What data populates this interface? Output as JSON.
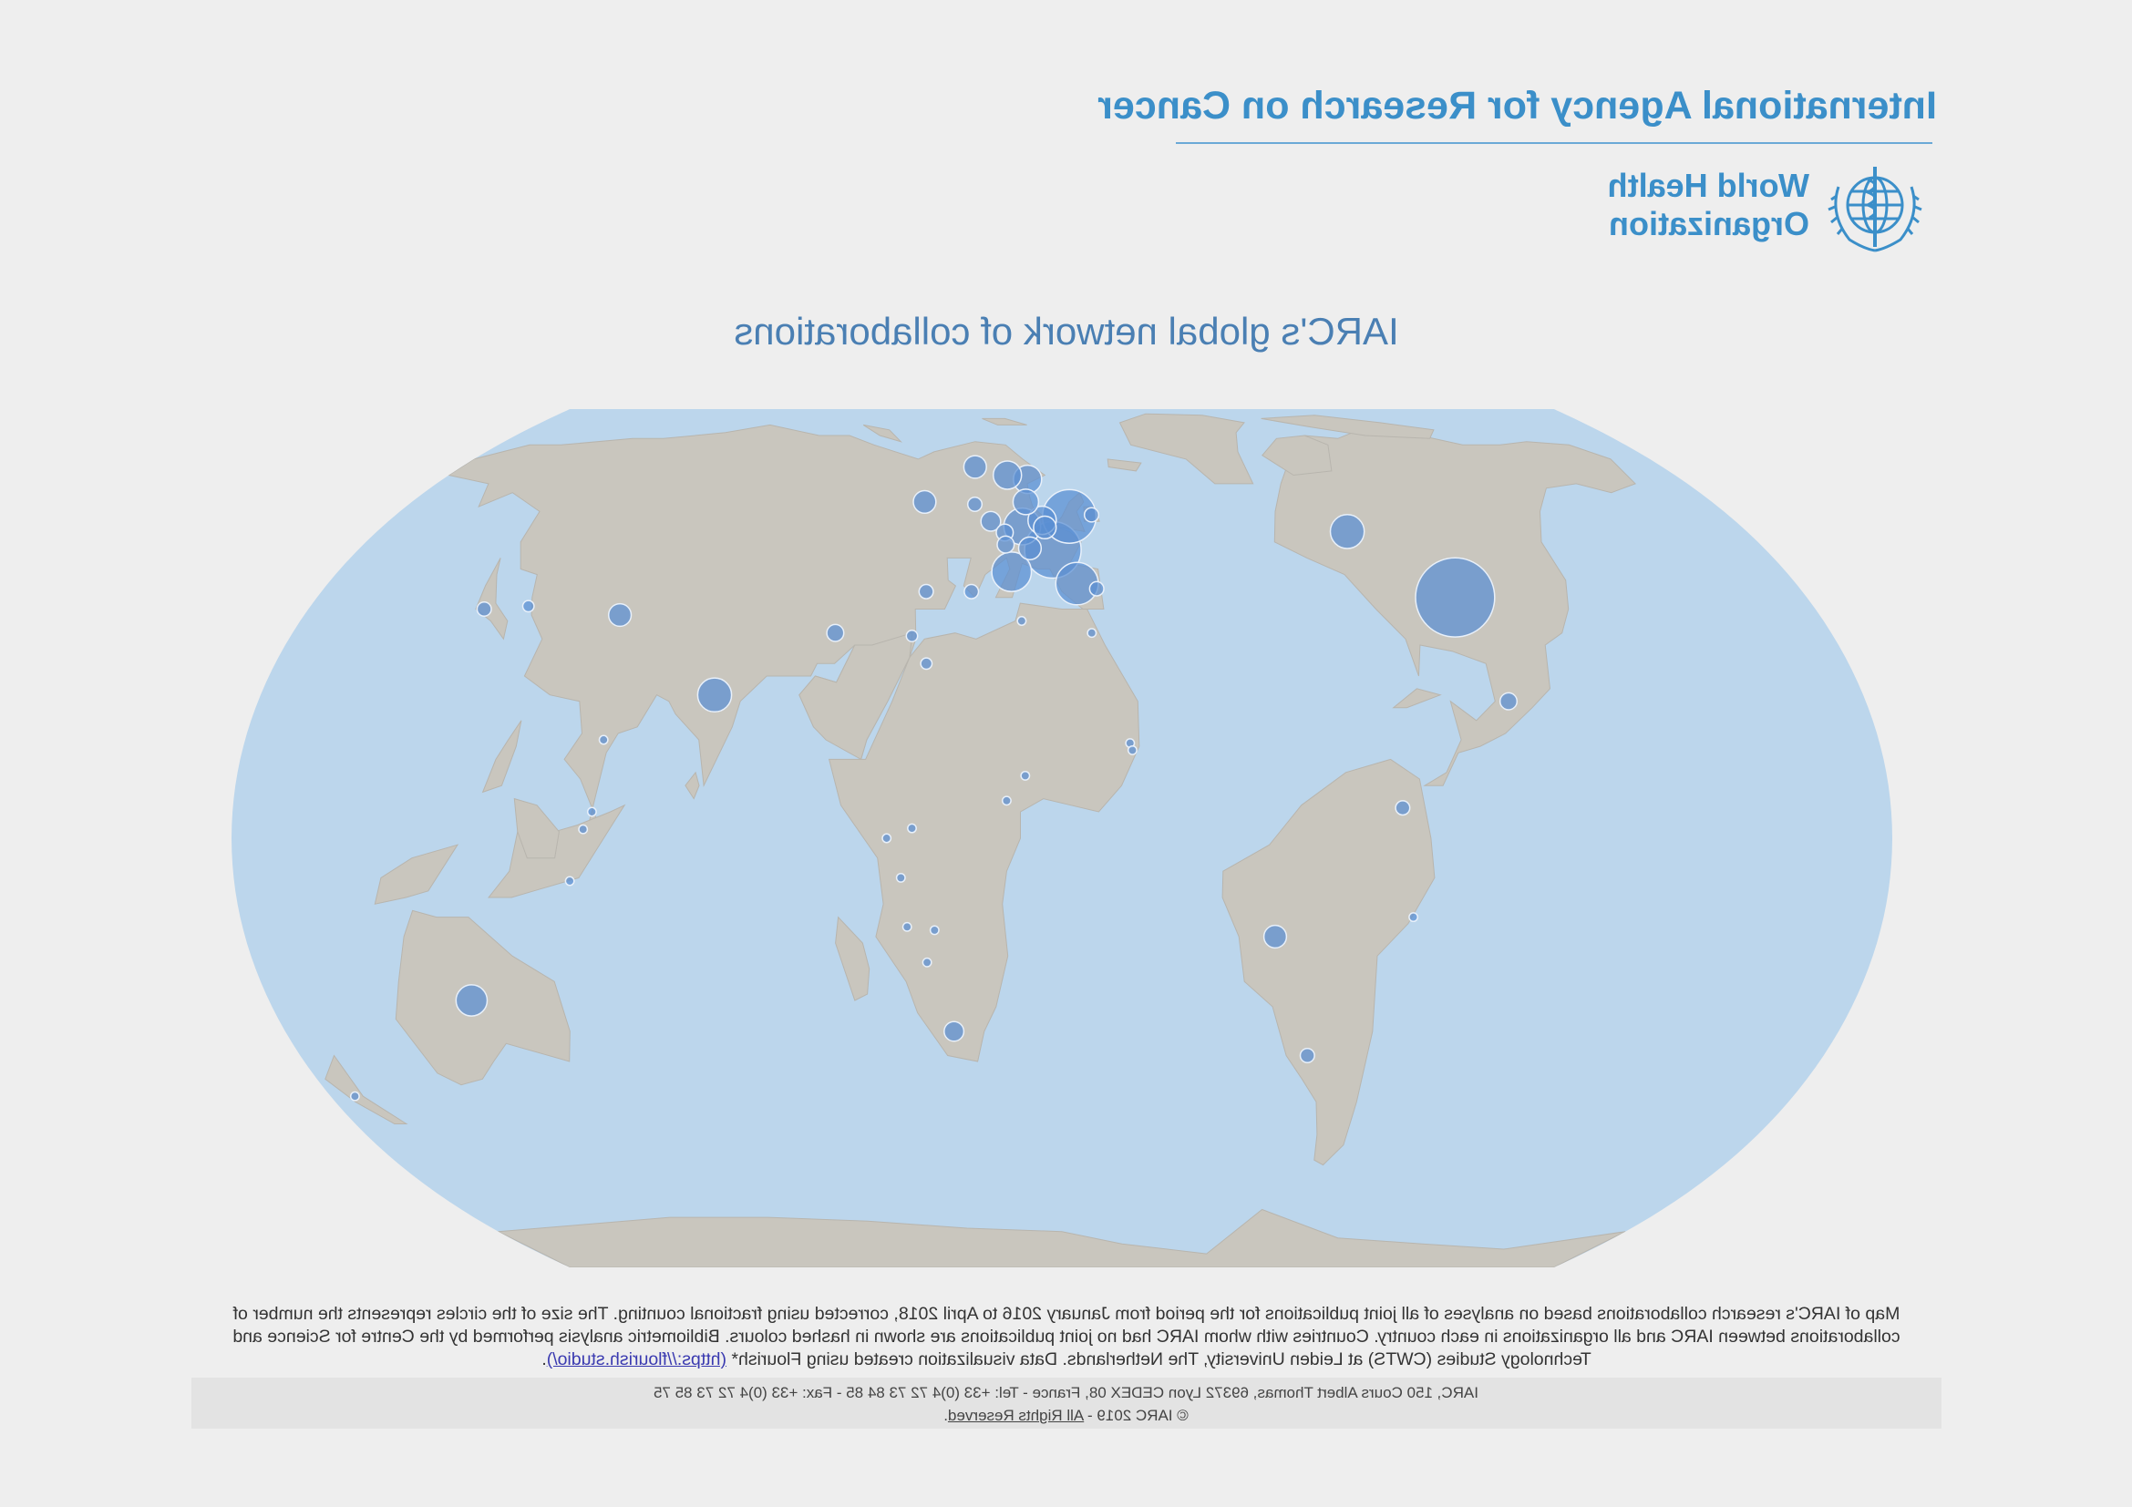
{
  "header": {
    "agency_title": "International Agency for Research on Cancer",
    "who_line1": "World Health",
    "who_line2": "Organization"
  },
  "title": "IARC's global network of collaborations",
  "colors": {
    "ocean": "#bcd6ec",
    "land": "#c9c6be",
    "circle_fill": "#5a8fd2",
    "circle_stroke": "#e8f0fa",
    "brand_blue": "#3b8fc9"
  },
  "map_data": {
    "projection": "Equal Earth (mirrored)",
    "collaborations": [
      {
        "place": "United States",
        "lon": -95,
        "lat": 38,
        "r": 28
      },
      {
        "place": "Canada",
        "lon": -75,
        "lat": 50,
        "r": 12
      },
      {
        "place": "Mexico",
        "lon": -100,
        "lat": 21,
        "r": 6
      },
      {
        "place": "Brazil",
        "lon": -47,
        "lat": -15,
        "r": 8
      },
      {
        "place": "Colombia",
        "lon": -74,
        "lat": 4.6,
        "r": 5
      },
      {
        "place": "Argentina",
        "lon": -58,
        "lat": -34,
        "r": 5
      },
      {
        "place": "Peru",
        "lon": -77,
        "lat": -12,
        "r": 3
      },
      {
        "place": "France",
        "lon": 2.3,
        "lat": 46.5,
        "r": 20
      },
      {
        "place": "United Kingdom",
        "lon": -2,
        "lat": 53,
        "r": 19
      },
      {
        "place": "Spain",
        "lon": -3.7,
        "lat": 40.4,
        "r": 15
      },
      {
        "place": "Italy",
        "lon": 12.5,
        "lat": 42.5,
        "r": 14
      },
      {
        "place": "Germany",
        "lon": 10.5,
        "lat": 51,
        "r": 13
      },
      {
        "place": "Netherlands",
        "lon": 5.3,
        "lat": 52.2,
        "r": 10
      },
      {
        "place": "Belgium",
        "lon": 4.5,
        "lat": 50.8,
        "r": 8
      },
      {
        "place": "Switzerland",
        "lon": 8.2,
        "lat": 46.8,
        "r": 8
      },
      {
        "place": "Norway",
        "lon": 10,
        "lat": 61,
        "r": 10
      },
      {
        "place": "Sweden",
        "lon": 16,
        "lat": 62,
        "r": 10
      },
      {
        "place": "Finland",
        "lon": 26,
        "lat": 64,
        "r": 8
      },
      {
        "place": "Denmark",
        "lon": 10,
        "lat": 56,
        "r": 9
      },
      {
        "place": "Poland",
        "lon": 19,
        "lat": 52,
        "r": 7
      },
      {
        "place": "Czechia",
        "lon": 15,
        "lat": 49.8,
        "r": 6
      },
      {
        "place": "Austria",
        "lon": 14.5,
        "lat": 47.5,
        "r": 6
      },
      {
        "place": "Portugal",
        "lon": -8.5,
        "lat": 39.5,
        "r": 5
      },
      {
        "place": "Ireland",
        "lon": -8,
        "lat": 53.3,
        "r": 5
      },
      {
        "place": "Greece",
        "lon": 22,
        "lat": 39,
        "r": 5
      },
      {
        "place": "Lithuania",
        "lon": 24,
        "lat": 55.5,
        "r": 5
      },
      {
        "place": "Russia",
        "lon": 38,
        "lat": 56,
        "r": 8
      },
      {
        "place": "Turkey",
        "lon": 33,
        "lat": 39,
        "r": 5
      },
      {
        "place": "Iran",
        "lon": 53,
        "lat": 32,
        "r": 6
      },
      {
        "place": "India",
        "lon": 78,
        "lat": 22,
        "r": 12
      },
      {
        "place": "China",
        "lon": 105,
        "lat": 35,
        "r": 8
      },
      {
        "place": "Japan",
        "lon": 138,
        "lat": 36,
        "r": 5
      },
      {
        "place": "Korea",
        "lon": 127.8,
        "lat": 36.5,
        "r": 4
      },
      {
        "place": "Thailand",
        "lon": 101,
        "lat": 15,
        "r": 3
      },
      {
        "place": "Malaysia",
        "lon": 102,
        "lat": 4,
        "r": 3
      },
      {
        "place": "Singapore",
        "lon": 103.8,
        "lat": 1.35,
        "r": 3
      },
      {
        "place": "Indonesia",
        "lon": 107,
        "lat": -6.5,
        "r": 3
      },
      {
        "place": "Australia",
        "lon": 134,
        "lat": -25,
        "r": 11
      },
      {
        "place": "New Zealand",
        "lon": 174,
        "lat": -41,
        "r": 3
      },
      {
        "place": "Israel",
        "lon": 35,
        "lat": 31.5,
        "r": 4
      },
      {
        "place": "Egypt",
        "lon": 31,
        "lat": 27,
        "r": 4
      },
      {
        "place": "Morocco",
        "lon": -7,
        "lat": 32,
        "r": 3
      },
      {
        "place": "Tunisia",
        "lon": 9.5,
        "lat": 34,
        "r": 3
      },
      {
        "place": "Nigeria",
        "lon": 8,
        "lat": 9.5,
        "r": 3
      },
      {
        "place": "Kenya",
        "lon": 38,
        "lat": 0,
        "r": 3
      },
      {
        "place": "Uganda",
        "lon": 32.5,
        "lat": 1.5,
        "r": 3
      },
      {
        "place": "Tanzania",
        "lon": 35,
        "lat": -6,
        "r": 3
      },
      {
        "place": "Zambia",
        "lon": 28,
        "lat": -14,
        "r": 3
      },
      {
        "place": "Malawi",
        "lon": 34,
        "lat": -13.5,
        "r": 3
      },
      {
        "place": "Zimbabwe",
        "lon": 30,
        "lat": -19,
        "r": 3
      },
      {
        "place": "South Africa",
        "lon": 25,
        "lat": -30,
        "r": 7
      },
      {
        "place": "Senegal",
        "lon": -15,
        "lat": 14.5,
        "r": 3
      },
      {
        "place": "Cameroon",
        "lon": 12,
        "lat": 5.7,
        "r": 3
      },
      {
        "place": "Gambia",
        "lon": -15.5,
        "lat": 13.4,
        "r": 3
      }
    ]
  },
  "caption": {
    "text": "Map of IARC's research collaborations based on analyses of all joint publications for the period from January 2016 to April 2018, corrected using fractional counting. The size of the circles represents the number of collaborations between IARC and all organizations in each country. Countries with whom IARC had no joint publications are shown in hashed colours. Bibliometric analysis performed by the Centre for Science and Technology Studies (CWTS) at Leiden University, The Netherlands. Data visualization created using Flourish*",
    "link_text": "(https://flourish.studio/)",
    "trail": "."
  },
  "footer": {
    "address": "IARC, 150 Cours Albert Thomas, 69372 Lyon CEDEX 08, France - Tel: +33 (0)4 72 73 84 85 - Fax: +33 (0)4 72 73 85 75",
    "copyright": "© IARC 2019 - ",
    "rights_link": "All Rights Reserved",
    "rights_trail": "."
  }
}
